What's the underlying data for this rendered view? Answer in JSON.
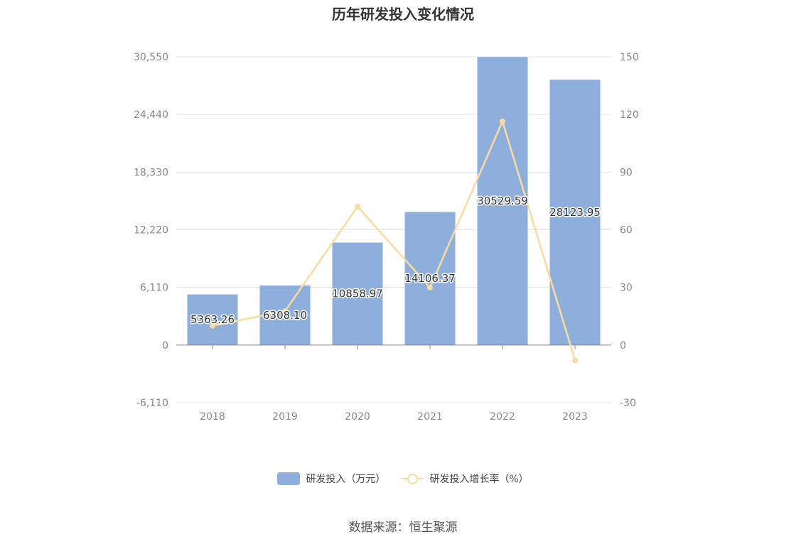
{
  "chart_data": {
    "type": "bar",
    "title": "历年研发投入变化情况",
    "categories": [
      "2018",
      "2019",
      "2020",
      "2021",
      "2022",
      "2023"
    ],
    "series": [
      {
        "name": "研发投入（万元）",
        "type": "bar",
        "axis": "left",
        "color": "#8eaedb",
        "values": [
          5363.26,
          6308.1,
          10858.97,
          14106.37,
          30529.59,
          28123.95
        ],
        "labels": [
          "5363.26",
          "6308.10",
          "10858.97",
          "14106.37",
          "30529.59",
          "28123.95"
        ]
      },
      {
        "name": "研发投入增长率（%）",
        "type": "line",
        "axis": "right",
        "color": "#fbdba0",
        "values": [
          10,
          17.6,
          72.1,
          29.9,
          116.4,
          -7.9
        ]
      }
    ],
    "left_axis": {
      "min": -6110,
      "max": 30550,
      "ticks": [
        "30,550",
        "24,440",
        "18,330",
        "12,220",
        "6,110",
        "0",
        "-6,110"
      ]
    },
    "right_axis": {
      "min": -30,
      "max": 150,
      "ticks": [
        "150",
        "120",
        "90",
        "60",
        "30",
        "0",
        "-30"
      ]
    },
    "grid": true,
    "legend_position": "bottom"
  },
  "source": "数据来源：恒生聚源"
}
